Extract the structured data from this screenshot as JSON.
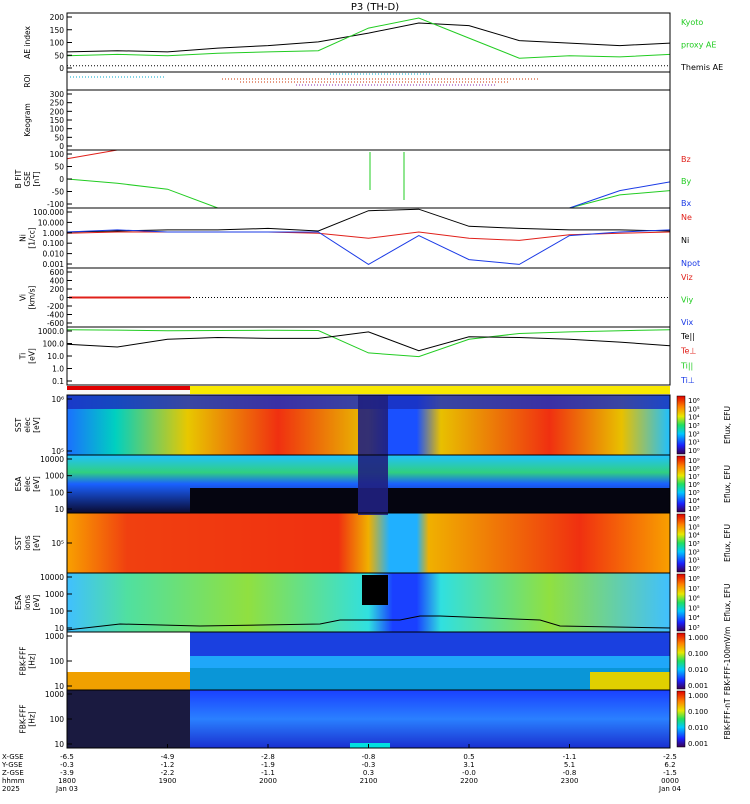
{
  "title": "P3 (TH-D)",
  "colors": {
    "red": "#e0201a",
    "green": "#22cc22",
    "blue": "#1a3ae6",
    "black": "#000000",
    "dotted_red": "#cc3300",
    "dotted_cyan": "#00aacc",
    "dotted_purple": "#8a2ab0"
  },
  "x_axis": {
    "row_labels": [
      "X-GSE",
      "Y-GSE",
      "Z-GSE",
      "hhmm",
      "2025"
    ],
    "ticks": [
      {
        "x": [
          "-6.5",
          "-0.3",
          "-3.9"
        ],
        "time": "1800",
        "date": "Jan 03"
      },
      {
        "x": [
          "-4.9",
          "-1.2",
          "-2.2"
        ],
        "time": "1900",
        "date": ""
      },
      {
        "x": [
          "-2.8",
          "-1.9",
          "-1.1"
        ],
        "time": "2000",
        "date": ""
      },
      {
        "x": [
          "-0.8",
          "-0.3",
          "0.3"
        ],
        "time": "2100",
        "date": ""
      },
      {
        "x": [
          "0.5",
          "3.1",
          "-0.0"
        ],
        "time": "2200",
        "date": ""
      },
      {
        "x": [
          "-1.1",
          "5.1",
          "-0.8"
        ],
        "time": "2300",
        "date": ""
      },
      {
        "x": [
          "-2.5",
          "6.2",
          "-1.5"
        ],
        "time": "0000",
        "date": "Jan 04"
      }
    ]
  },
  "panels": [
    {
      "id": "ae",
      "ylabel": [
        "AE index"
      ],
      "ticks": [
        "200",
        "150",
        "100",
        "50",
        "0"
      ],
      "legend": [
        {
          "text": "Kyoto",
          "color": "#22cc22"
        },
        {
          "text": "proxy AE",
          "color": "#22cc22"
        },
        {
          "text": "Themis AE",
          "color": "#000000"
        }
      ]
    },
    {
      "id": "roi",
      "ylabel": [
        "ROI"
      ],
      "ticks": [],
      "legend": []
    },
    {
      "id": "keogram",
      "ylabel": [
        "Keogram"
      ],
      "ticks": [
        "300",
        "250",
        "200",
        "150",
        "100",
        "50",
        "0"
      ],
      "legend": []
    },
    {
      "id": "bfield",
      "ylabel": [
        "B FIT",
        "GSE",
        "[nT]"
      ],
      "ticks": [
        "100",
        "50",
        "0",
        "-50",
        "-100"
      ],
      "legend": [
        {
          "text": "Bz",
          "color": "#e0201a"
        },
        {
          "text": "By",
          "color": "#22cc22"
        },
        {
          "text": "Bx",
          "color": "#1a3ae6"
        }
      ]
    },
    {
      "id": "ni",
      "ylabel": [
        "Ni",
        "[1/cc]"
      ],
      "ticks": [
        "100.000",
        "10.000",
        "1.000",
        "0.100",
        "0.010",
        "0.001"
      ],
      "legend": [
        {
          "text": "Ne",
          "color": "#e0201a"
        },
        {
          "text": "Ni",
          "color": "#000000"
        },
        {
          "text": "Npot",
          "color": "#1a3ae6"
        }
      ]
    },
    {
      "id": "vi",
      "ylabel": [
        "Vi",
        "[km/s]"
      ],
      "ticks": [
        "600",
        "400",
        "200",
        "0",
        "-200",
        "-400",
        "-600"
      ],
      "legend": [
        {
          "text": "Viz",
          "color": "#e0201a"
        },
        {
          "text": "Viy",
          "color": "#22cc22"
        },
        {
          "text": "Vix",
          "color": "#1a3ae6"
        }
      ]
    },
    {
      "id": "ti",
      "ylabel": [
        "Ti",
        "[eV]"
      ],
      "ticks": [
        "1000.0",
        "100.0",
        "10.0",
        "1.0",
        "0.1"
      ],
      "legend": [
        {
          "text": "Te||",
          "color": "#000000"
        },
        {
          "text": "Te⊥",
          "color": "#e0201a"
        },
        {
          "text": "Ti||",
          "color": "#22cc22"
        },
        {
          "text": "Ti⊥",
          "color": "#1a3ae6"
        }
      ]
    },
    {
      "id": "sst_e",
      "ylabel": [
        "SST",
        "elec",
        "[eV]"
      ],
      "ticks": [
        "10⁶",
        "10⁵"
      ],
      "legend": []
    },
    {
      "id": "esa_e",
      "ylabel": [
        "ESA",
        "elec",
        "[eV]"
      ],
      "ticks": [
        "10000",
        "1000",
        "100",
        "10"
      ],
      "legend": []
    },
    {
      "id": "sst_i",
      "ylabel": [
        "SST",
        "ions",
        "[eV]"
      ],
      "ticks": [
        "10⁵"
      ],
      "legend": []
    },
    {
      "id": "esa_i",
      "ylabel": [
        "ESA",
        "ions",
        "[eV]"
      ],
      "ticks": [
        "10000",
        "1000",
        "100",
        "10"
      ],
      "legend": []
    },
    {
      "id": "fbk_fff",
      "ylabel": [
        "FBK-FFF",
        "[Hz]"
      ],
      "ticks": [
        "1000",
        "100",
        "10"
      ],
      "legend": []
    },
    {
      "id": "fbk_fff2",
      "ylabel": [
        "FBK-FFF",
        "[Hz]"
      ],
      "ticks": [
        "1000",
        "100",
        "10"
      ],
      "legend": []
    }
  ],
  "colorbars": [
    {
      "panel": "sst_e",
      "label": "Eflux, EFU",
      "ticks": [
        "10⁶",
        "10⁵",
        "10⁴",
        "10³",
        "10²",
        "10¹",
        "10⁰"
      ]
    },
    {
      "panel": "esa_e",
      "label": "Eflux, EFU",
      "ticks": [
        "10⁹",
        "10⁸",
        "10⁷",
        "10⁶",
        "10⁵",
        "10⁴",
        "10³"
      ]
    },
    {
      "panel": "sst_i",
      "label": "Eflux, EFU",
      "ticks": [
        "10⁶",
        "10⁵",
        "10⁴",
        "10³",
        "10²",
        "10¹",
        "10⁰"
      ]
    },
    {
      "panel": "esa_i",
      "label": "Eflux, EFU",
      "ticks": [
        "10⁸",
        "10⁷",
        "10⁶",
        "10⁵",
        "10⁴",
        "10³"
      ]
    },
    {
      "panel": "fbk_fff",
      "label": "FBK-FFF-100mV/m",
      "ticks": [
        "1.000",
        "0.100",
        "0.010",
        "0.001"
      ]
    },
    {
      "panel": "fbk_fff2",
      "label": "FBK-FFF-nT",
      "ticks": [
        "1.000",
        "0.100",
        "0.010",
        "0.001"
      ]
    }
  ],
  "chart_data": {
    "type": "line",
    "title": "P3 (TH-D)",
    "x": [
      "1800",
      "1830",
      "1900",
      "1930",
      "2000",
      "2030",
      "2100",
      "2130",
      "2200",
      "2230",
      "2300",
      "2330",
      "0000"
    ],
    "xlim": [
      "1800",
      "0000"
    ],
    "series_ae": [
      {
        "name": "Themis AE",
        "values": [
          55,
          60,
          55,
          70,
          80,
          95,
          130,
          170,
          160,
          100,
          90,
          80,
          90
        ]
      },
      {
        "name": "Kyoto proxy AE",
        "values": [
          40,
          45,
          40,
          50,
          55,
          60,
          150,
          190,
          110,
          30,
          40,
          35,
          45
        ]
      }
    ],
    "ae_ylim": [
      -25,
      210
    ],
    "series_b": [
      {
        "name": "Bz",
        "values": [
          70,
          100,
          null,
          null,
          null,
          null,
          null,
          null,
          null,
          null,
          null,
          null,
          100
        ]
      },
      {
        "name": "By",
        "values": [
          0,
          -15,
          -35,
          -100,
          null,
          null,
          null,
          null,
          null,
          null,
          -100,
          -55,
          -40
        ]
      },
      {
        "name": "Bx",
        "values": [
          null,
          null,
          null,
          null,
          null,
          null,
          null,
          null,
          null,
          null,
          -100,
          -40,
          -10
        ]
      }
    ],
    "b_ylim": [
      -100,
      100
    ],
    "series_ni": [
      {
        "name": "Ni",
        "values": [
          1.0,
          1.2,
          1.5,
          1.5,
          2.0,
          1.2,
          60,
          80,
          3.0,
          2.0,
          1.5,
          1.5,
          1.2
        ]
      },
      {
        "name": "Ne",
        "values": [
          0.8,
          1.0,
          1.0,
          1.0,
          1.0,
          0.8,
          0.3,
          1.0,
          0.3,
          0.2,
          0.6,
          0.8,
          1.0
        ]
      },
      {
        "name": "Npot",
        "values": [
          1.0,
          1.5,
          1.0,
          1.0,
          1.0,
          1.0,
          0.002,
          0.5,
          0.005,
          0.002,
          0.5,
          1.0,
          1.5
        ]
      }
    ],
    "ni_ylim": [
      0.001,
      100
    ],
    "series_ti": [
      {
        "name": "Ti||",
        "values": [
          3000,
          2800,
          2500,
          2600,
          2700,
          2600,
          40,
          20,
          500,
          1500,
          2000,
          2500,
          3000
        ]
      },
      {
        "name": "Te||",
        "values": [
          200,
          120,
          500,
          700,
          600,
          600,
          2000,
          60,
          800,
          700,
          500,
          300,
          150
        ]
      }
    ],
    "ti_ylim": [
      0.1,
      5000
    ],
    "vi_ylim": [
      -600,
      600
    ]
  }
}
